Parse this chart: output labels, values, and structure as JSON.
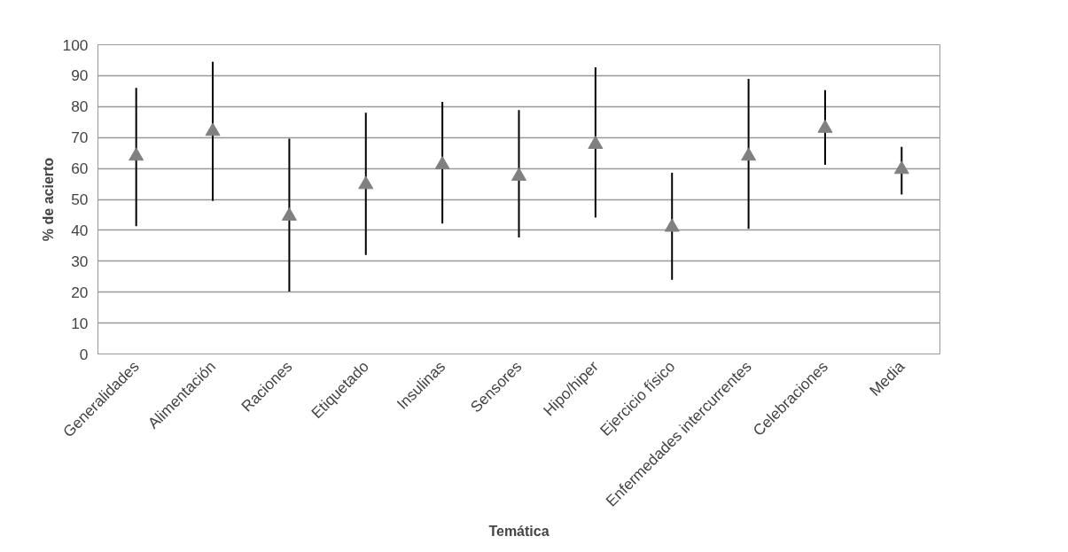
{
  "chart_data": {
    "type": "scatter",
    "xlabel": "Temática",
    "ylabel": "% de acierto",
    "categories": [
      "Generalidades",
      "Alimentación",
      "Raciones",
      "Etiquetado",
      "Insulinas",
      "Sensores",
      "Hipo/hiper",
      "Ejercicio físico",
      "Enfermedades intercurrentes",
      "Celebraciones",
      "Media"
    ],
    "series": [
      {
        "color": "#808080",
        "values": [
          64,
          72,
          44.6,
          54.8,
          61.2,
          57.5,
          67.8,
          41,
          64,
          73,
          59.7
        ],
        "errors": [
          [
            41.3,
            86
          ],
          [
            49.5,
            94.5
          ],
          [
            20.2,
            69.6
          ],
          [
            32,
            78
          ],
          [
            42.2,
            81.5
          ],
          [
            37.7,
            78.9
          ],
          [
            44.1,
            92.7
          ],
          [
            24,
            58.6
          ],
          [
            40.5,
            89
          ],
          [
            61.2,
            85.3
          ],
          [
            51.6,
            67
          ]
        ]
      }
    ],
    "ylim": [
      0,
      100
    ],
    "yticks": [
      0,
      10,
      20,
      30,
      40,
      50,
      60,
      70,
      80,
      90,
      100
    ],
    "grid": "y",
    "marker": "triangle"
  }
}
